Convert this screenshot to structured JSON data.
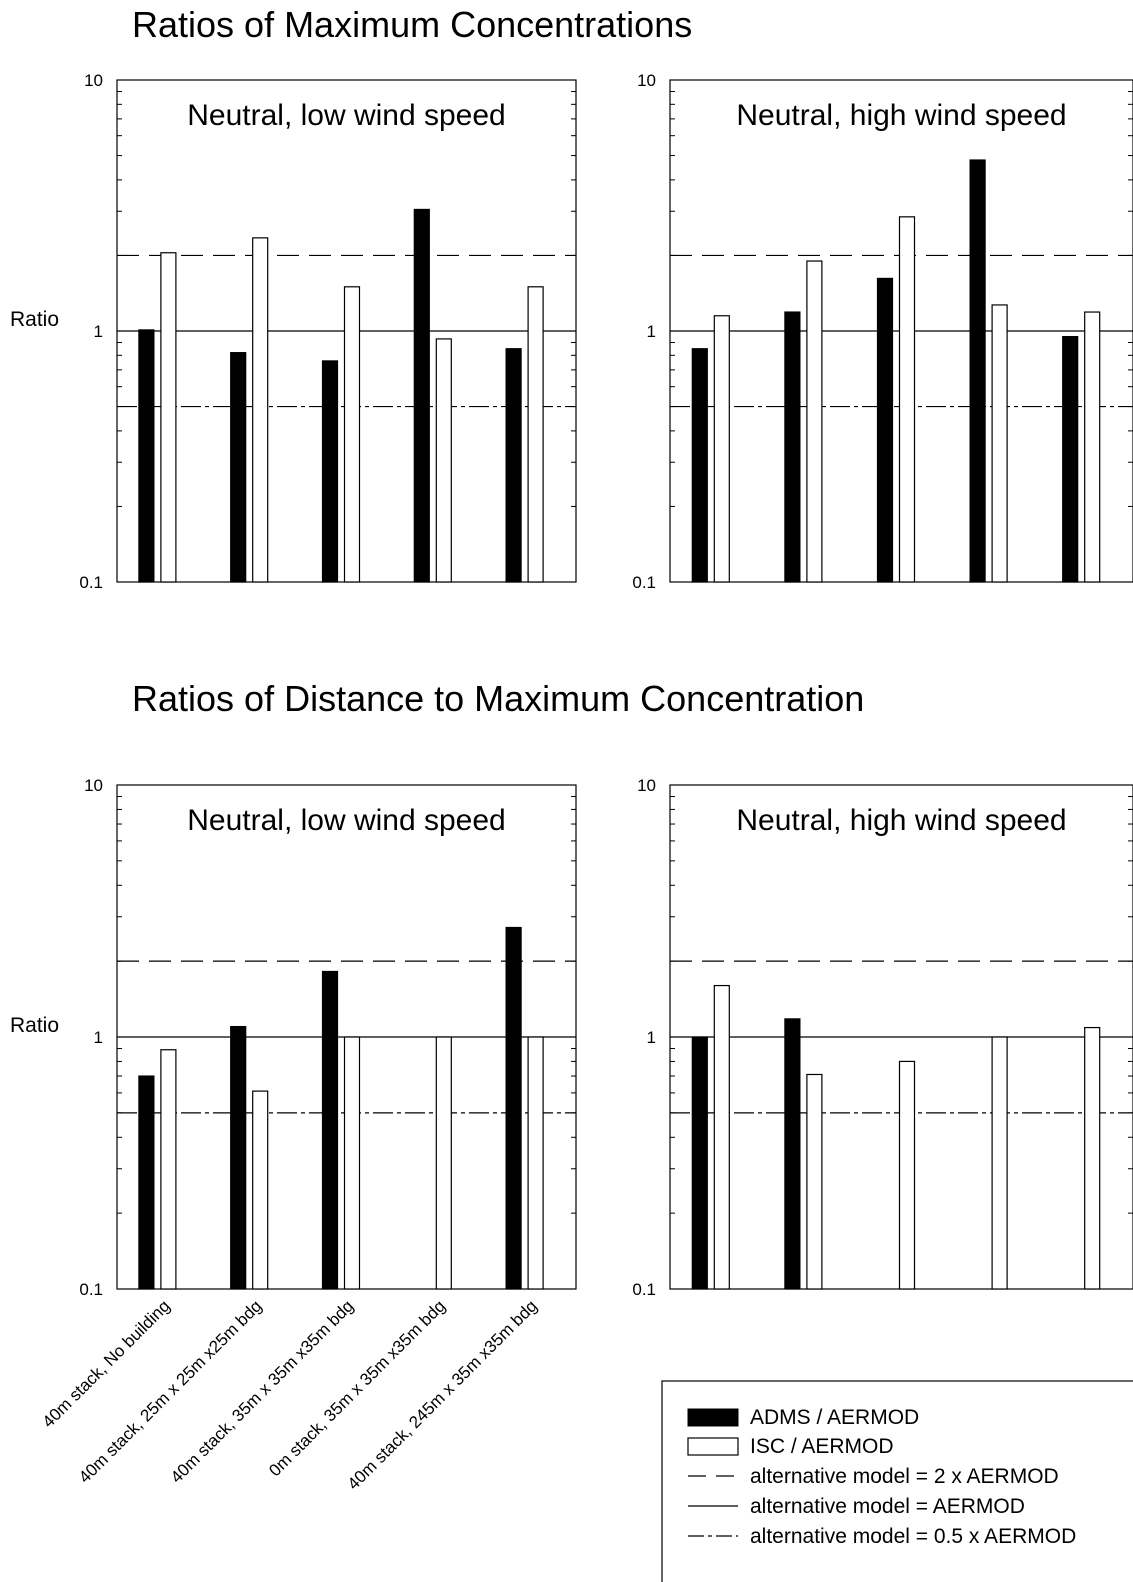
{
  "sections": [
    {
      "title": "Ratios of Maximum Concentrations"
    },
    {
      "title": "Ratios of Distance to Maximum Concentration"
    }
  ],
  "y_axis_label": "Ratio",
  "categories": [
    "40m stack, No building",
    "40m stack, 25m x 25m x25m bdg",
    "40m stack, 35m x 35m x35m bdg",
    "0m stack, 35m x 35m x35m bdg",
    "40m stack, 245m x 35m x35m bdg"
  ],
  "legend": {
    "items": [
      {
        "label": "ADMS / AERMOD",
        "kind": "bar-filled"
      },
      {
        "label": "ISC / AERMOD",
        "kind": "bar-open"
      },
      {
        "label": "alternative model = 2 x AERMOD",
        "kind": "line-dashed"
      },
      {
        "label": "alternative model = AERMOD",
        "kind": "line-solid"
      },
      {
        "label": "alternative model = 0.5 x AERMOD",
        "kind": "line-dashdot"
      }
    ]
  },
  "colors": {
    "adms": "#000000",
    "isc": "#ffffff",
    "stroke": "#000000"
  },
  "chart_data": [
    {
      "type": "bar",
      "section": "Ratios of Maximum Concentrations",
      "title": "Neutral, low wind speed",
      "ylabel": "Ratio",
      "yscale": "log",
      "ylim": [
        0.1,
        10
      ],
      "yticks": [
        "0.1",
        "1",
        "10"
      ],
      "categories": [
        "40m stack, No building",
        "40m stack, 25m x 25m x25m bdg",
        "40m stack, 35m x 35m x35m bdg",
        "0m stack, 35m x 35m x35m bdg",
        "40m stack, 245m x 35m x35m bdg"
      ],
      "series": [
        {
          "name": "ADMS / AERMOD",
          "values": [
            1.01,
            0.82,
            0.76,
            3.05,
            0.85
          ]
        },
        {
          "name": "ISC / AERMOD",
          "values": [
            2.05,
            2.35,
            1.5,
            0.93,
            1.5
          ]
        }
      ],
      "reference_lines": [
        2,
        1,
        0.5
      ]
    },
    {
      "type": "bar",
      "section": "Ratios of Maximum Concentrations",
      "title": "Neutral, high wind speed",
      "yscale": "log",
      "ylim": [
        0.1,
        10
      ],
      "yticks": [
        "0.1",
        "1",
        "10"
      ],
      "categories": [
        "40m stack, No building",
        "40m stack, 25m x 25m x25m bdg",
        "40m stack, 35m x 35m x35m bdg",
        "0m stack, 35m x 35m x35m bdg",
        "40m stack, 245m x 35m x35m bdg"
      ],
      "series": [
        {
          "name": "ADMS / AERMOD",
          "values": [
            0.85,
            1.19,
            1.62,
            4.8,
            0.95
          ]
        },
        {
          "name": "ISC / AERMOD",
          "values": [
            1.15,
            1.9,
            2.85,
            1.27,
            1.19
          ]
        }
      ],
      "reference_lines": [
        2,
        1,
        0.5
      ]
    },
    {
      "type": "bar",
      "section": "Ratios of Distance to Maximum Concentration",
      "title": "Neutral, low wind speed",
      "ylabel": "Ratio",
      "yscale": "log",
      "ylim": [
        0.1,
        10
      ],
      "yticks": [
        "0.1",
        "1",
        "10"
      ],
      "categories": [
        "40m stack, No building",
        "40m stack, 25m x 25m x25m bdg",
        "40m stack, 35m x 35m x35m bdg",
        "0m stack, 35m x 35m x35m bdg",
        "40m stack, 245m x 35m x35m bdg"
      ],
      "series": [
        {
          "name": "ADMS / AERMOD",
          "values": [
            0.7,
            1.1,
            1.82,
            null,
            2.72
          ]
        },
        {
          "name": "ISC / AERMOD",
          "values": [
            0.89,
            0.61,
            1.0,
            1.0,
            1.0
          ]
        }
      ],
      "reference_lines": [
        2,
        1,
        0.5
      ]
    },
    {
      "type": "bar",
      "section": "Ratios of Distance to Maximum Concentration",
      "title": "Neutral, high wind speed",
      "yscale": "log",
      "ylim": [
        0.1,
        10
      ],
      "yticks": [
        "0.1",
        "1",
        "10"
      ],
      "categories": [
        "40m stack, No building",
        "40m stack, 25m x 25m x25m bdg",
        "40m stack, 35m x 35m x35m bdg",
        "0m stack, 35m x 35m x35m bdg",
        "40m stack, 245m x 35m x35m bdg"
      ],
      "series": [
        {
          "name": "ADMS / AERMOD",
          "values": [
            1.0,
            1.18,
            null,
            null,
            null
          ]
        },
        {
          "name": "ISC / AERMOD",
          "values": [
            1.6,
            0.71,
            0.8,
            1.0,
            1.09
          ]
        }
      ],
      "reference_lines": [
        2,
        1,
        0.5
      ]
    }
  ]
}
